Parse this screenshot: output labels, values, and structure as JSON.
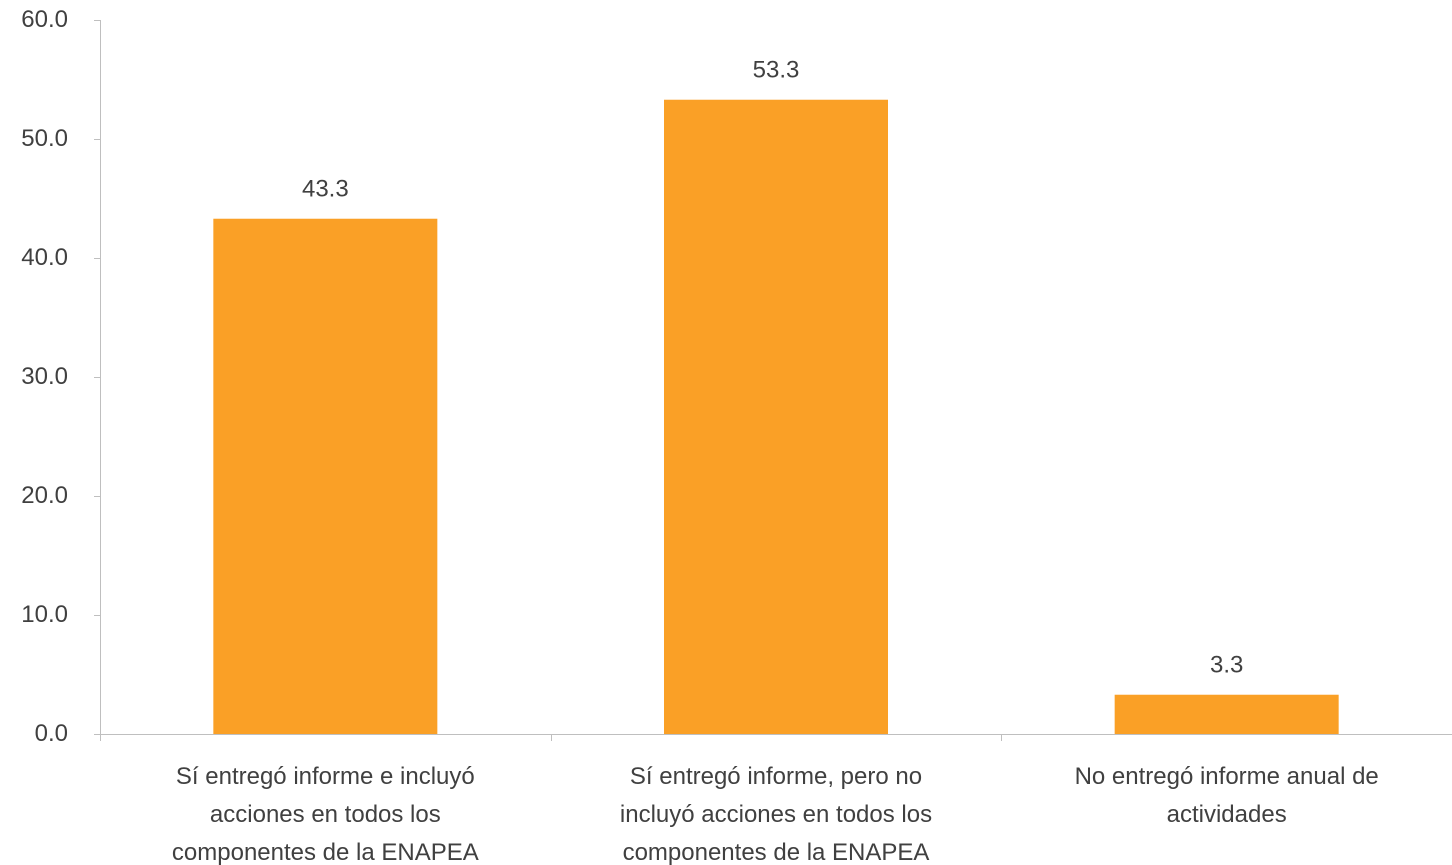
{
  "chart_data": {
    "type": "bar",
    "title": "",
    "xlabel": "",
    "ylabel": "",
    "categories": [
      "Sí entregó informe e incluyó acciones en todos los componentes de la ENAPEA",
      "Sí entregó informe, pero no incluyó acciones en todos los componentes de la ENAPEA",
      "No entregó informe anual de actividades"
    ],
    "category_lines": [
      [
        "Sí entregó informe e incluyó",
        "acciones en todos los",
        "componentes de la ENAPEA"
      ],
      [
        "Sí entregó informe, pero no",
        "incluyó acciones en todos los",
        "componentes de la ENAPEA"
      ],
      [
        "No entregó informe anual de",
        "actividades"
      ]
    ],
    "values": [
      43.3,
      53.3,
      3.3
    ],
    "data_labels": [
      "43.3",
      "53.3",
      "3.3"
    ],
    "ylim": [
      0,
      60
    ],
    "yticks": [
      0,
      10,
      20,
      30,
      40,
      50,
      60
    ],
    "ytick_labels": [
      "0.0",
      "10.0",
      "20.0",
      "30.0",
      "40.0",
      "50.0",
      "60.0"
    ],
    "grid": false,
    "legend": "none",
    "colors": {
      "bar": "#FAA026",
      "axis": "#BFBFBF",
      "text": "#404040"
    }
  }
}
